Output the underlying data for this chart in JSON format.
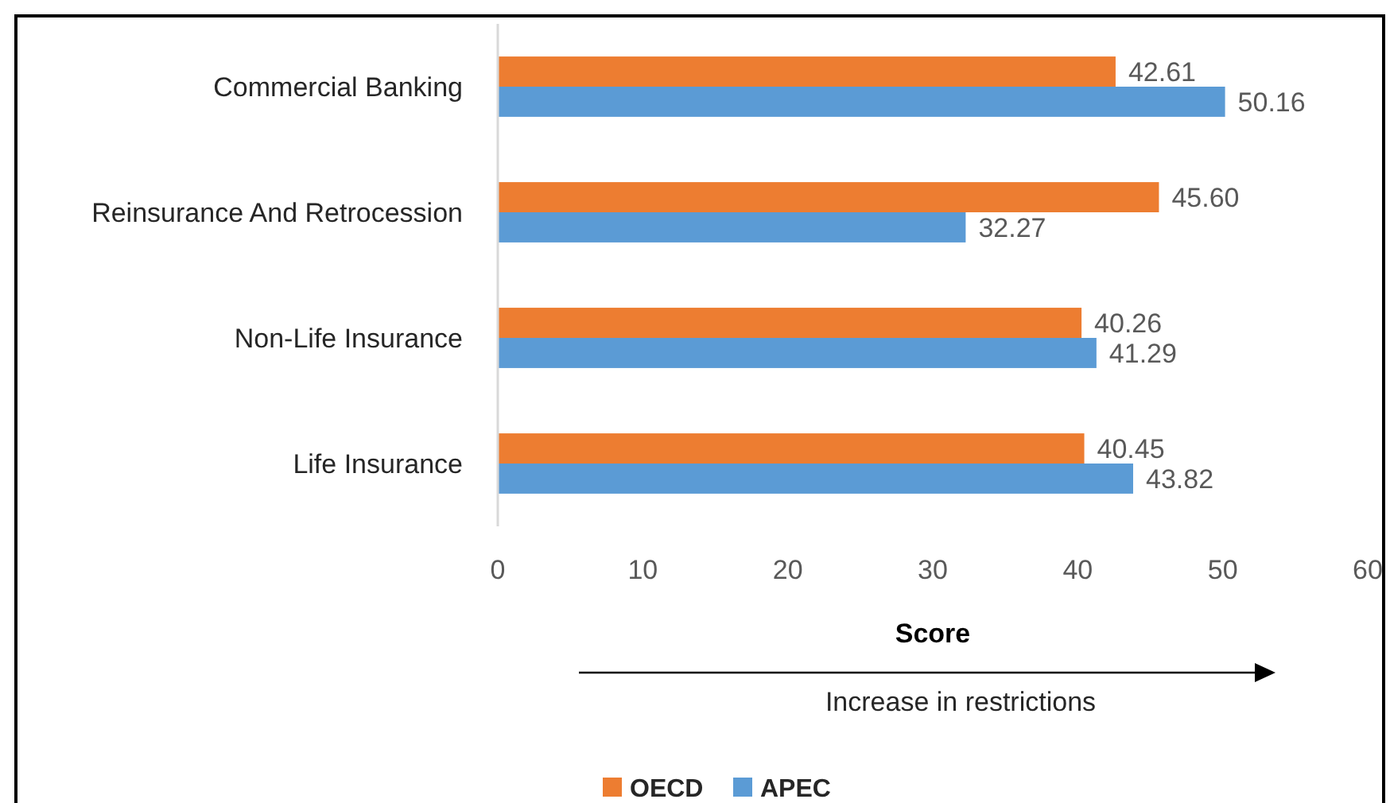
{
  "chart_data": {
    "type": "bar",
    "orientation": "horizontal",
    "categories": [
      "Commercial Banking",
      "Reinsurance And Retrocession",
      "Non-Life Insurance",
      "Life Insurance"
    ],
    "series": [
      {
        "name": "OECD",
        "color": "#ed7d31",
        "values": [
          42.61,
          45.6,
          40.26,
          40.45
        ],
        "value_labels": [
          "42.61",
          "45.60",
          "40.26",
          "40.45"
        ]
      },
      {
        "name": "APEC",
        "color": "#5b9bd5",
        "values": [
          50.16,
          32.27,
          41.29,
          43.82
        ],
        "value_labels": [
          "50.16",
          "32.27",
          "41.29",
          "43.82"
        ]
      }
    ],
    "xlabel": "Score",
    "xlim": [
      0,
      60
    ],
    "xticks": [
      0,
      10,
      20,
      30,
      40,
      50,
      60
    ],
    "legend": "bottom",
    "annotations": [
      "Increase in restrictions"
    ]
  }
}
